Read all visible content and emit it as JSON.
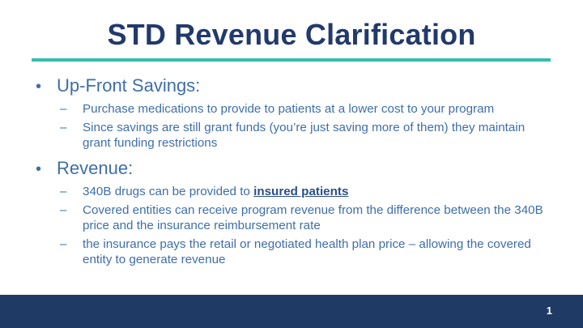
{
  "slide": {
    "title": "STD Revenue Clarification",
    "page_number": "1",
    "colors": {
      "title": "#223a6b",
      "accent_rule": "#35bfae",
      "body_text": "#3e6ea8",
      "footer": "#203a66"
    }
  },
  "bullets": [
    {
      "label": "Up-Front Savings:",
      "subs": [
        {
          "text": "Purchase medications to provide to patients at a lower cost to your program"
        },
        {
          "text": "Since savings are still grant funds (you’re just saving more of them) they maintain grant funding restrictions"
        }
      ]
    },
    {
      "label": "Revenue:",
      "subs": [
        {
          "prefix": "340B drugs can be provided to ",
          "emphasis": "insured patients"
        },
        {
          "text": "Covered entities can receive program revenue from the difference between the 340B price and the insurance reimbursement rate"
        },
        {
          "text": "the insurance pays the retail or negotiated health plan price – allowing the covered entity to generate revenue"
        }
      ]
    }
  ]
}
